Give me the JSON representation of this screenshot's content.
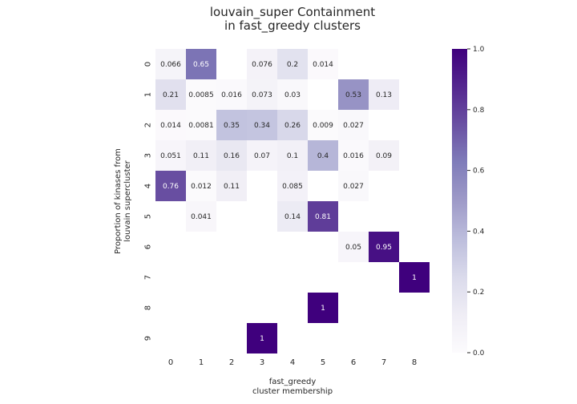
{
  "chart_data": {
    "type": "heatmap",
    "title": [
      "louvain_super Containment",
      "in fast_greedy clusters"
    ],
    "xlabel": [
      "fast_greedy",
      "cluster membership"
    ],
    "ylabel": [
      "Proportion of kinases from",
      "louvain supercluster"
    ],
    "x_categories": [
      "0",
      "1",
      "2",
      "3",
      "4",
      "5",
      "6",
      "7",
      "8"
    ],
    "y_categories": [
      "0",
      "1",
      "2",
      "3",
      "4",
      "5",
      "6",
      "7",
      "8",
      "9"
    ],
    "colormap": "Purples",
    "vmin": 0,
    "vmax": 1,
    "colorbar_ticks": [
      "0.0",
      "0.2",
      "0.4",
      "0.6",
      "0.8",
      "1.0"
    ],
    "values": [
      [
        0.066,
        0.65,
        null,
        0.076,
        0.2,
        0.014,
        null,
        null,
        null
      ],
      [
        0.21,
        0.0085,
        0.016,
        0.073,
        0.03,
        null,
        0.53,
        0.13,
        null
      ],
      [
        0.014,
        0.0081,
        0.35,
        0.34,
        0.26,
        0.009,
        0.027,
        null,
        null
      ],
      [
        0.051,
        0.11,
        0.16,
        0.07,
        0.1,
        0.4,
        0.016,
        0.09,
        null
      ],
      [
        0.76,
        0.012,
        0.11,
        null,
        0.085,
        null,
        0.027,
        null,
        null
      ],
      [
        null,
        0.041,
        null,
        null,
        0.14,
        0.81,
        null,
        null,
        null
      ],
      [
        null,
        null,
        null,
        null,
        null,
        null,
        0.05,
        0.95,
        null
      ],
      [
        null,
        null,
        null,
        null,
        null,
        null,
        null,
        null,
        1
      ],
      [
        null,
        null,
        null,
        null,
        null,
        1,
        null,
        null,
        null
      ],
      [
        null,
        null,
        null,
        1,
        null,
        null,
        null,
        null,
        null
      ]
    ],
    "value_labels": [
      [
        "0.066",
        "0.65",
        null,
        "0.076",
        "0.2",
        "0.014",
        null,
        null,
        null
      ],
      [
        "0.21",
        "0.0085",
        "0.016",
        "0.073",
        "0.03",
        null,
        "0.53",
        "0.13",
        null
      ],
      [
        "0.014",
        "0.0081",
        "0.35",
        "0.34",
        "0.26",
        "0.009",
        "0.027",
        null,
        null
      ],
      [
        "0.051",
        "0.11",
        "0.16",
        "0.07",
        "0.1",
        "0.4",
        "0.016",
        "0.09",
        null
      ],
      [
        "0.76",
        "0.012",
        "0.11",
        null,
        "0.085",
        null,
        "0.027",
        null,
        null
      ],
      [
        null,
        "0.041",
        null,
        null,
        "0.14",
        "0.81",
        null,
        null,
        null
      ],
      [
        null,
        null,
        null,
        null,
        null,
        null,
        "0.05",
        "0.95",
        null
      ],
      [
        null,
        null,
        null,
        null,
        null,
        null,
        null,
        null,
        "1"
      ],
      [
        null,
        null,
        null,
        null,
        null,
        "1",
        null,
        null,
        null
      ],
      [
        null,
        null,
        null,
        "1",
        null,
        null,
        null,
        null,
        null
      ]
    ]
  }
}
